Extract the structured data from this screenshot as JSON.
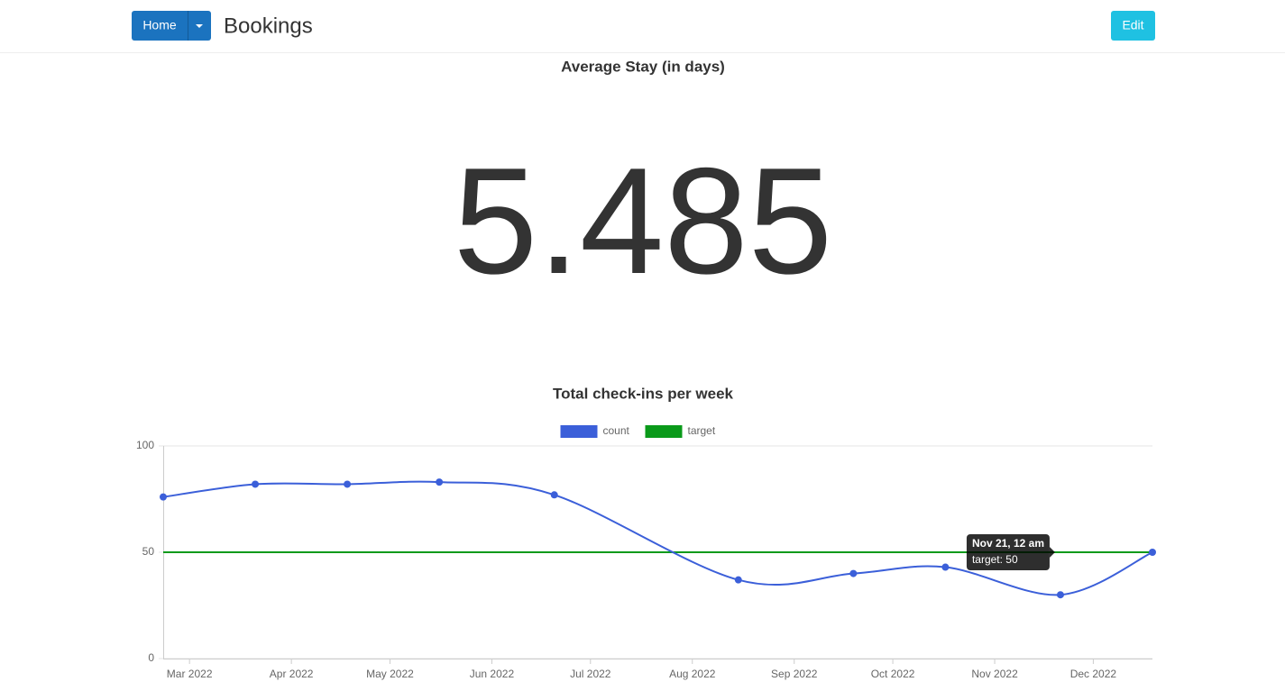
{
  "header": {
    "home_button": "Home",
    "title": "Bookings",
    "edit_button": "Edit"
  },
  "metric": {
    "title": "Average Stay (in days)",
    "value": 5.485
  },
  "chart_data": {
    "type": "line",
    "title": "Total check-ins per week",
    "x": [
      "2022-02-21",
      "2022-03-21",
      "2022-04-18",
      "2022-05-16",
      "2022-06-20",
      "2022-08-15",
      "2022-09-19",
      "2022-10-17",
      "2022-11-21",
      "2022-12-19"
    ],
    "series": [
      {
        "name": "count",
        "color": "#3b5fd9",
        "values": [
          76,
          82,
          82,
          83,
          77,
          37,
          40,
          43,
          30,
          50
        ]
      },
      {
        "name": "target",
        "color": "#0a9a1a",
        "values": [
          50,
          50,
          50,
          50,
          50,
          50,
          50,
          50,
          50,
          50
        ]
      }
    ],
    "xlim": [
      "2022-02-21",
      "2022-12-19"
    ],
    "xticks": [
      {
        "value": "2022-03-01",
        "label": "Mar 2022"
      },
      {
        "value": "2022-04-01",
        "label": "Apr 2022"
      },
      {
        "value": "2022-05-01",
        "label": "May 2022"
      },
      {
        "value": "2022-06-01",
        "label": "Jun 2022"
      },
      {
        "value": "2022-07-01",
        "label": "Jul 2022"
      },
      {
        "value": "2022-08-01",
        "label": "Aug 2022"
      },
      {
        "value": "2022-09-01",
        "label": "Sep 2022"
      },
      {
        "value": "2022-10-01",
        "label": "Oct 2022"
      },
      {
        "value": "2022-11-01",
        "label": "Nov 2022"
      },
      {
        "value": "2022-12-01",
        "label": "Dec 2022"
      }
    ],
    "ylim": [
      0,
      100
    ],
    "yticks": [
      0,
      50,
      100
    ],
    "grid": true,
    "legend": "top",
    "tooltip": {
      "title": "Nov 21, 12 am",
      "body": "target: 50"
    }
  }
}
